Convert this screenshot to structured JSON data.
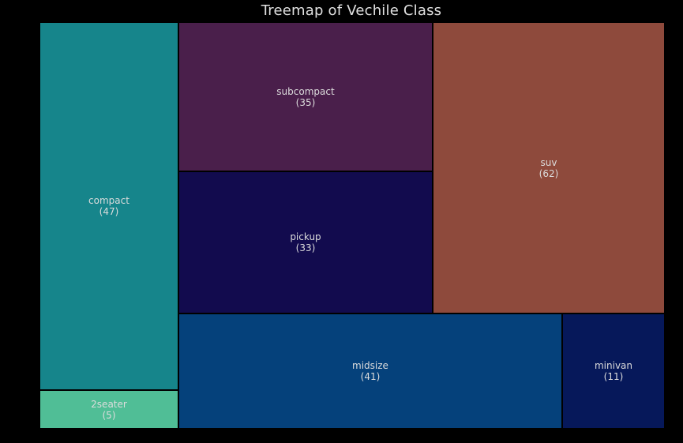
{
  "chart_data": {
    "type": "treemap",
    "title": "Treemap of Vechile Class",
    "items": [
      {
        "label": "compact",
        "value": 47,
        "color": "#16858B"
      },
      {
        "label": "2seater",
        "value": 5,
        "color": "#50BE96"
      },
      {
        "label": "subcompact",
        "value": 35,
        "color": "#4A1F4B"
      },
      {
        "label": "pickup",
        "value": 33,
        "color": "#120B4E"
      },
      {
        "label": "suv",
        "value": 62,
        "color": "#8E4A3C"
      },
      {
        "label": "midsize",
        "value": 41,
        "color": "#05417B"
      },
      {
        "label": "minivan",
        "value": 11,
        "color": "#06185A"
      }
    ]
  }
}
